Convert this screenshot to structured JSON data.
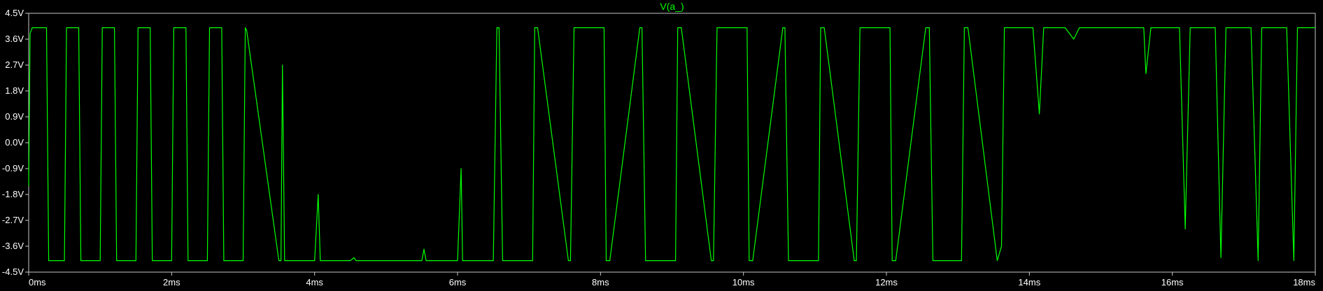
{
  "chart_data": {
    "type": "line",
    "title": "V(a_)",
    "xlabel": "",
    "ylabel": "",
    "xlim": [
      0,
      18
    ],
    "ylim": [
      -4.5,
      4.5
    ],
    "x_ticks": [
      "0ms",
      "2ms",
      "4ms",
      "6ms",
      "8ms",
      "10ms",
      "12ms",
      "14ms",
      "16ms",
      "18ms"
    ],
    "x_tick_values": [
      0,
      2,
      4,
      6,
      8,
      10,
      12,
      14,
      16,
      18
    ],
    "y_ticks": [
      "4.5V",
      "3.6V",
      "2.7V",
      "1.8V",
      "0.9V",
      "0.0V",
      "-0.9V",
      "-1.8V",
      "-2.7V",
      "-3.6V",
      "-4.5V"
    ],
    "y_tick_values": [
      4.5,
      3.6,
      2.7,
      1.8,
      0.9,
      0.0,
      -0.9,
      -1.8,
      -2.7,
      -3.6,
      -4.5
    ],
    "grid": false,
    "legend": "none",
    "colors": {
      "background": "#000000",
      "trace": "#00ff00",
      "frame": "#c8c8c8",
      "text": "#ffffff"
    },
    "series": [
      {
        "name": "V(a_)",
        "x": [
          0,
          0.02,
          0.05,
          0.25,
          0.28,
          0.5,
          0.53,
          0.7,
          0.73,
          1.0,
          1.03,
          1.2,
          1.23,
          1.5,
          1.53,
          1.7,
          1.73,
          2.0,
          2.03,
          2.2,
          2.23,
          2.5,
          2.53,
          2.7,
          2.73,
          3.0,
          3.03,
          3.05,
          3.5,
          3.53,
          3.55,
          3.58,
          4.0,
          4.05,
          4.08,
          4.11,
          4.5,
          4.55,
          4.58,
          5.0,
          5.5,
          5.53,
          5.56,
          6.0,
          6.05,
          6.07,
          6.09,
          6.5,
          6.55,
          6.58,
          6.63,
          7.05,
          7.08,
          7.12,
          7.55,
          7.58,
          7.63,
          8.05,
          8.08,
          8.13,
          8.55,
          8.58,
          8.63,
          9.05,
          9.08,
          9.13,
          9.55,
          9.58,
          9.63,
          10.05,
          10.08,
          10.13,
          10.55,
          10.58,
          10.63,
          11.05,
          11.08,
          11.13,
          11.55,
          11.58,
          11.63,
          12.05,
          12.08,
          12.13,
          12.55,
          12.6,
          12.65,
          13.05,
          13.09,
          13.14,
          13.55,
          13.61,
          13.65,
          14.05,
          14.14,
          14.2,
          14.5,
          14.62,
          14.7,
          15.0,
          15.2,
          15.6,
          15.63,
          15.7,
          16.1,
          16.18,
          16.25,
          16.6,
          16.68,
          16.75,
          17.1,
          17.2,
          17.25,
          17.6,
          17.7,
          17.75,
          18.0
        ],
        "y": [
          -1.5,
          3.8,
          4.0,
          4.0,
          -4.1,
          -4.1,
          4.0,
          4.0,
          -4.1,
          -4.1,
          4.0,
          4.0,
          -4.1,
          -4.1,
          4.0,
          4.0,
          -4.1,
          -4.1,
          4.0,
          4.0,
          -4.1,
          -4.1,
          4.0,
          4.0,
          -4.1,
          -4.1,
          4.0,
          3.9,
          -4.1,
          -4.1,
          2.7,
          -4.1,
          -4.1,
          -1.8,
          -4.1,
          -4.1,
          -4.1,
          -4.0,
          -4.1,
          -4.1,
          -4.1,
          -3.7,
          -4.1,
          -4.1,
          -0.9,
          -4.1,
          -4.1,
          -4.1,
          4.0,
          4.0,
          -4.1,
          -4.1,
          4.0,
          4.0,
          -4.1,
          -4.1,
          4.0,
          4.0,
          -4.1,
          -4.1,
          4.0,
          4.0,
          -4.1,
          -4.1,
          4.0,
          4.0,
          -4.1,
          -4.1,
          4.0,
          4.0,
          -4.1,
          -4.1,
          4.0,
          4.0,
          -4.1,
          -4.1,
          4.0,
          4.0,
          -4.1,
          -4.1,
          4.0,
          4.0,
          -4.1,
          -4.1,
          4.0,
          4.0,
          -4.1,
          -4.1,
          4.0,
          4.0,
          -4.1,
          -3.6,
          4.0,
          4.0,
          1.0,
          4.0,
          4.0,
          3.6,
          4.0,
          4.0,
          4.0,
          4.0,
          2.4,
          4.0,
          4.0,
          -3.0,
          4.0,
          4.0,
          -4.0,
          4.0,
          4.0,
          -4.1,
          4.0,
          4.0,
          -4.1,
          4.0,
          4.0
        ]
      }
    ]
  }
}
